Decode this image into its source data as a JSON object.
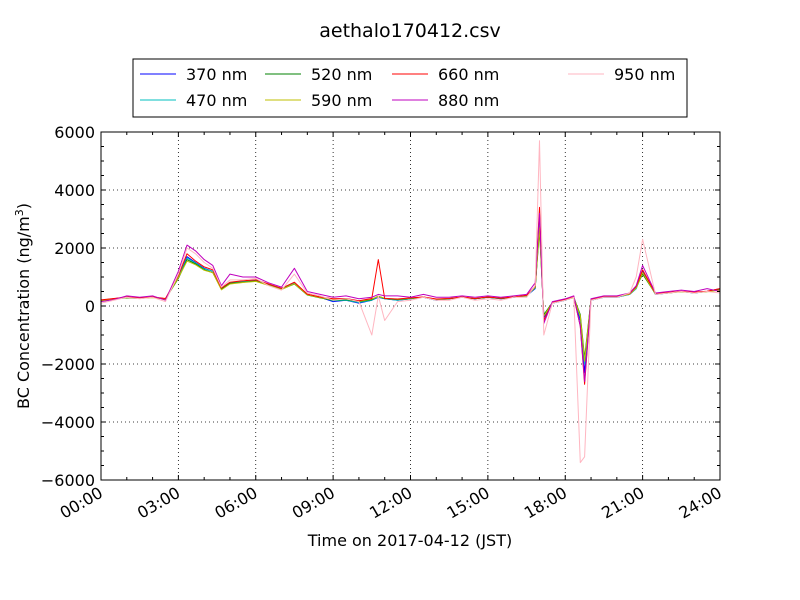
{
  "chart_data": {
    "type": "line",
    "title": "aethalo170412.csv",
    "xlabel": "Time on 2017-04-12 (JST)",
    "ylabel_main": "BC Concentration (ng/m",
    "ylabel_sup": "3",
    "ylabel_tail": ")",
    "xlim": [
      "00:00",
      "24:00"
    ],
    "ylim": [
      -6000,
      6000
    ],
    "x_ticks": [
      "00:00",
      "03:00",
      "06:00",
      "09:00",
      "12:00",
      "15:00",
      "18:00",
      "21:00",
      "24:00"
    ],
    "y_ticks": [
      "6000",
      "4000",
      "2000",
      "0",
      "−2000",
      "−4000",
      "−6000"
    ],
    "grid": true,
    "legend_position": "top-center",
    "x": [
      "00:00",
      "00:30",
      "01:00",
      "01:30",
      "02:00",
      "02:30",
      "03:00",
      "03:20",
      "03:40",
      "04:00",
      "04:20",
      "04:40",
      "05:00",
      "05:30",
      "06:00",
      "06:30",
      "07:00",
      "07:30",
      "08:00",
      "08:30",
      "09:00",
      "09:30",
      "10:00",
      "10:30",
      "10:45",
      "11:00",
      "11:30",
      "12:00",
      "12:30",
      "13:00",
      "13:30",
      "14:00",
      "14:30",
      "15:00",
      "15:30",
      "16:00",
      "16:30",
      "16:50",
      "17:00",
      "17:10",
      "17:30",
      "18:00",
      "18:20",
      "18:35",
      "18:45",
      "19:00",
      "19:30",
      "20:00",
      "20:30",
      "20:45",
      "21:00",
      "21:30",
      "22:00",
      "22:30",
      "23:00",
      "23:30",
      "24:00"
    ],
    "series": [
      {
        "name": "370 nm",
        "color": "#0000ff",
        "values": [
          200,
          250,
          300,
          280,
          300,
          250,
          1000,
          1700,
          1500,
          1300,
          1200,
          600,
          800,
          850,
          900,
          750,
          600,
          800,
          400,
          300,
          150,
          200,
          100,
          200,
          300,
          250,
          200,
          250,
          300,
          200,
          250,
          300,
          250,
          300,
          250,
          300,
          350,
          600,
          3000,
          -400,
          100,
          200,
          300,
          -500,
          -2300,
          200,
          300,
          300,
          400,
          600,
          1200,
          400,
          450,
          500,
          450,
          500,
          600
        ]
      },
      {
        "name": "470 nm",
        "color": "#00bfbf",
        "values": [
          200,
          250,
          300,
          280,
          300,
          250,
          1000,
          1650,
          1480,
          1280,
          1200,
          600,
          800,
          850,
          880,
          750,
          600,
          780,
          400,
          300,
          180,
          200,
          120,
          200,
          320,
          250,
          200,
          250,
          300,
          200,
          250,
          300,
          250,
          300,
          250,
          300,
          350,
          620,
          2800,
          -350,
          100,
          200,
          300,
          -400,
          -2000,
          200,
          300,
          300,
          400,
          600,
          1150,
          400,
          450,
          500,
          450,
          500,
          580
        ]
      },
      {
        "name": "520 nm",
        "color": "#008000",
        "values": [
          180,
          240,
          280,
          260,
          300,
          240,
          950,
          1600,
          1450,
          1250,
          1150,
          580,
          780,
          820,
          860,
          720,
          580,
          760,
          380,
          280,
          200,
          220,
          150,
          220,
          340,
          260,
          220,
          260,
          300,
          220,
          250,
          300,
          250,
          300,
          260,
          300,
          350,
          640,
          2600,
          -300,
          120,
          220,
          300,
          -300,
          -1800,
          220,
          320,
          320,
          420,
          650,
          1100,
          420,
          460,
          500,
          470,
          500,
          560
        ]
      },
      {
        "name": "590 nm",
        "color": "#bfbf00",
        "values": [
          190,
          240,
          290,
          270,
          290,
          240,
          980,
          1550,
          1420,
          1230,
          1150,
          560,
          760,
          810,
          850,
          710,
          570,
          770,
          390,
          290,
          220,
          240,
          160,
          240,
          330,
          270,
          230,
          270,
          310,
          230,
          260,
          310,
          260,
          310,
          270,
          310,
          360,
          650,
          2700,
          -350,
          110,
          210,
          290,
          -350,
          -1900,
          210,
          310,
          310,
          410,
          620,
          1150,
          410,
          450,
          490,
          460,
          490,
          550
        ]
      },
      {
        "name": "660 nm",
        "color": "#ff0000",
        "values": [
          210,
          260,
          310,
          290,
          310,
          260,
          1050,
          1800,
          1550,
          1350,
          1250,
          620,
          820,
          870,
          900,
          760,
          610,
          820,
          410,
          310,
          250,
          260,
          180,
          260,
          1600,
          260,
          240,
          280,
          310,
          240,
          260,
          310,
          260,
          310,
          270,
          310,
          370,
          680,
          3400,
          -500,
          130,
          230,
          310,
          -700,
          -2700,
          230,
          330,
          330,
          430,
          680,
          1250,
          430,
          470,
          510,
          480,
          510,
          600
        ]
      },
      {
        "name": "880 nm",
        "color": "#bf00bf",
        "values": [
          150,
          220,
          350,
          300,
          350,
          200,
          1200,
          2100,
          1900,
          1600,
          1400,
          700,
          1100,
          1000,
          1000,
          800,
          650,
          1300,
          500,
          400,
          300,
          350,
          250,
          300,
          400,
          350,
          350,
          300,
          400,
          300,
          300,
          350,
          300,
          350,
          300,
          350,
          400,
          800,
          3200,
          -600,
          150,
          250,
          350,
          -700,
          -2600,
          250,
          350,
          350,
          450,
          700,
          1400,
          450,
          500,
          550,
          500,
          600,
          500
        ]
      },
      {
        "name": "950 nm",
        "color": "#ffb6c1",
        "values": [
          100,
          200,
          300,
          250,
          300,
          150,
          1100,
          2000,
          1800,
          1500,
          1300,
          650,
          900,
          900,
          950,
          700,
          550,
          1100,
          450,
          350,
          200,
          250,
          150,
          -1000,
          350,
          -500,
          150,
          200,
          300,
          200,
          200,
          300,
          200,
          250,
          200,
          300,
          300,
          700,
          5700,
          -1000,
          100,
          200,
          300,
          -5400,
          -5200,
          200,
          300,
          300,
          450,
          1000,
          2300,
          400,
          450,
          500,
          450,
          500,
          450
        ]
      }
    ]
  }
}
